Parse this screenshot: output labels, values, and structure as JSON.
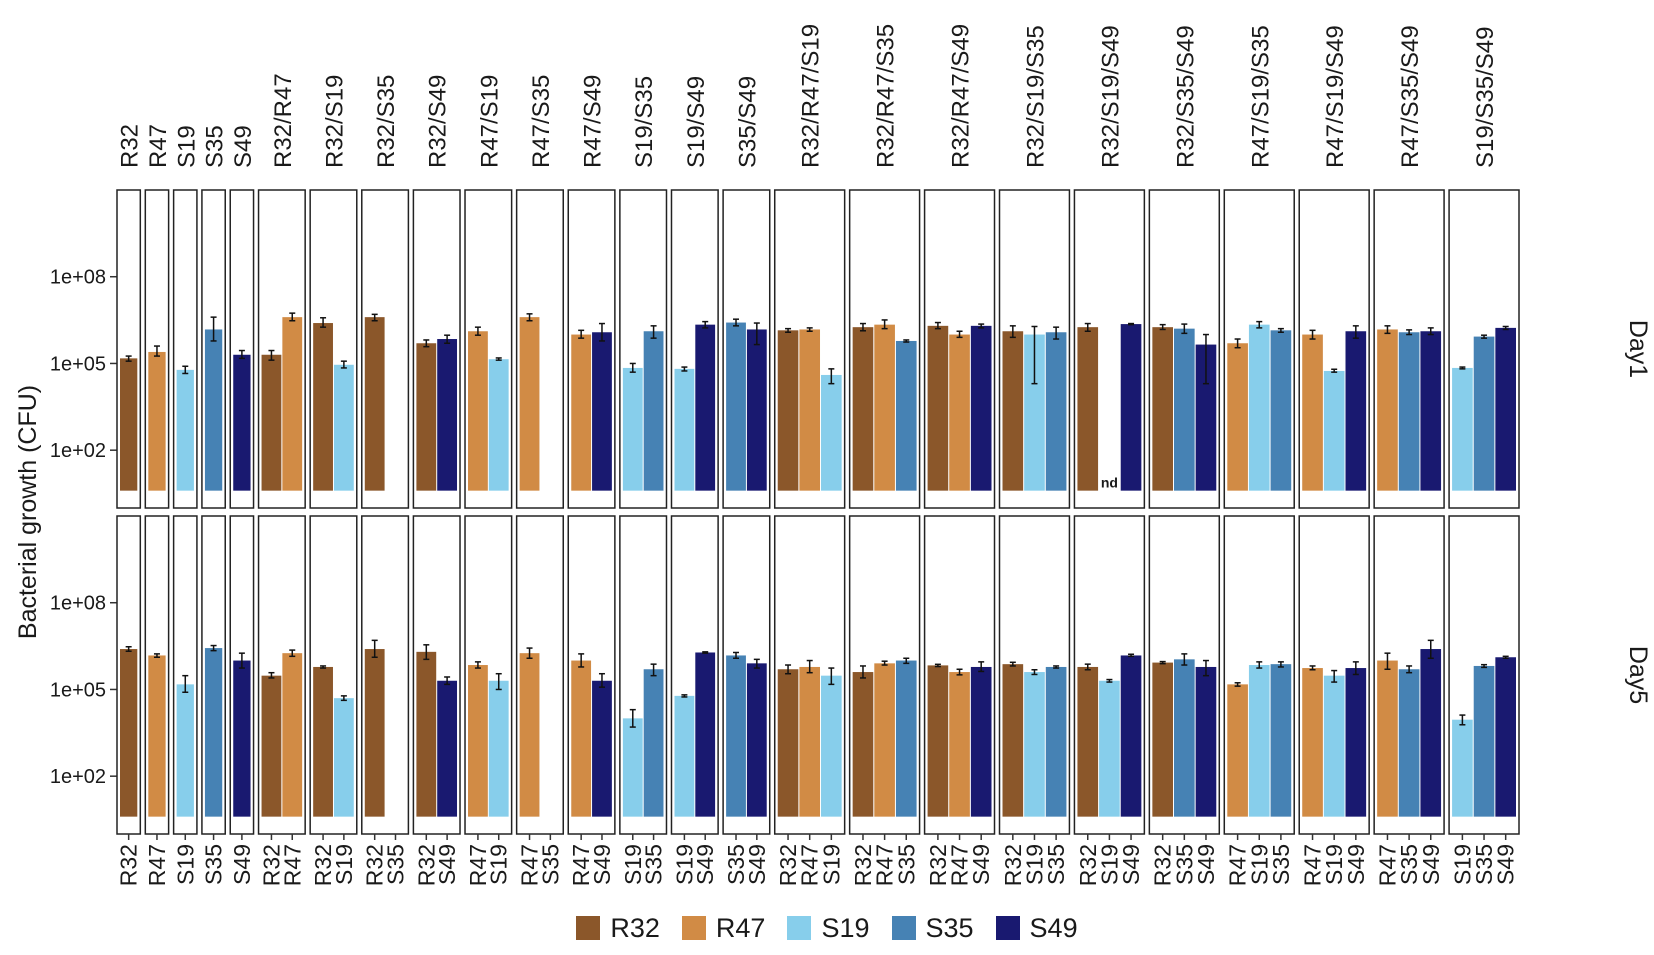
{
  "chart_data": {
    "type": "bar",
    "title": "",
    "ylabel": "Bacterial growth (CFU)",
    "xlabel": "",
    "yscale": "log10",
    "ylim": [
      1,
      100000000000
    ],
    "yticks": [
      "1e+02",
      "1e+05",
      "1e+08"
    ],
    "ytick_values": [
      100,
      100000,
      100000000
    ],
    "rows": [
      "Day1",
      "Day5"
    ],
    "not_detected_label": "nd",
    "colors": {
      "R32": "#8B572A",
      "R47": "#D18B45",
      "S19": "#87CEEB",
      "S35": "#4682B4",
      "S49": "#191970"
    },
    "legend": [
      "R32",
      "R47",
      "S19",
      "S35",
      "S49"
    ],
    "panels": [
      {
        "label": "R32",
        "strains": [
          "R32"
        ],
        "Day1": [
          {
            "v": 150000,
            "lo": 120000,
            "hi": 180000
          }
        ],
        "Day5": [
          {
            "v": 2500000,
            "lo": 2100000,
            "hi": 3000000
          }
        ]
      },
      {
        "label": "R47",
        "strains": [
          "R47"
        ],
        "Day1": [
          {
            "v": 250000,
            "lo": 180000,
            "hi": 400000
          }
        ],
        "Day5": [
          {
            "v": 1500000,
            "lo": 1300000,
            "hi": 1700000
          }
        ]
      },
      {
        "label": "S19",
        "strains": [
          "S19"
        ],
        "Day1": [
          {
            "v": 60000,
            "lo": 45000,
            "hi": 80000
          }
        ],
        "Day5": [
          {
            "v": 150000,
            "lo": 80000,
            "hi": 300000
          }
        ]
      },
      {
        "label": "S35",
        "strains": [
          "S35"
        ],
        "Day1": [
          {
            "v": 1500000,
            "lo": 600000,
            "hi": 4000000
          }
        ],
        "Day5": [
          {
            "v": 2700000,
            "lo": 2200000,
            "hi": 3300000
          }
        ]
      },
      {
        "label": "S49",
        "strains": [
          "S49"
        ],
        "Day1": [
          {
            "v": 200000,
            "lo": 150000,
            "hi": 280000
          }
        ],
        "Day5": [
          {
            "v": 1000000,
            "lo": 550000,
            "hi": 1800000
          }
        ]
      },
      {
        "label": "R32/R47",
        "strains": [
          "R32",
          "R47"
        ],
        "Day1": [
          {
            "v": 200000,
            "lo": 130000,
            "hi": 280000
          },
          {
            "v": 4000000,
            "lo": 3000000,
            "hi": 5500000
          }
        ],
        "Day5": [
          {
            "v": 300000,
            "lo": 250000,
            "hi": 380000
          },
          {
            "v": 1800000,
            "lo": 1400000,
            "hi": 2300000
          }
        ]
      },
      {
        "label": "R32/S19",
        "strains": [
          "R32",
          "S19"
        ],
        "Day1": [
          {
            "v": 2500000,
            "lo": 1800000,
            "hi": 3800000
          },
          {
            "v": 90000,
            "lo": 70000,
            "hi": 120000
          }
        ],
        "Day5": [
          {
            "v": 600000,
            "lo": 550000,
            "hi": 650000
          },
          {
            "v": 50000,
            "lo": 42000,
            "hi": 60000
          }
        ]
      },
      {
        "label": "R32/S35",
        "strains": [
          "R32",
          "S35"
        ],
        "Day1": [
          {
            "v": 4000000,
            "lo": 3000000,
            "hi": 5000000
          },
          null
        ],
        "Day5": [
          {
            "v": 2500000,
            "lo": 1300000,
            "hi": 5000000
          },
          null
        ]
      },
      {
        "label": "R32/S49",
        "strains": [
          "R32",
          "S49"
        ],
        "Day1": [
          {
            "v": 500000,
            "lo": 380000,
            "hi": 650000
          },
          {
            "v": 700000,
            "lo": 500000,
            "hi": 950000
          }
        ],
        "Day5": [
          {
            "v": 2000000,
            "lo": 1100000,
            "hi": 3500000
          },
          {
            "v": 200000,
            "lo": 150000,
            "hi": 270000
          }
        ]
      },
      {
        "label": "R47/S19",
        "strains": [
          "R47",
          "S19"
        ],
        "Day1": [
          {
            "v": 1300000,
            "lo": 950000,
            "hi": 1800000
          },
          {
            "v": 140000,
            "lo": 130000,
            "hi": 155000
          }
        ],
        "Day5": [
          {
            "v": 700000,
            "lo": 550000,
            "hi": 900000
          },
          {
            "v": 200000,
            "lo": 100000,
            "hi": 350000
          }
        ]
      },
      {
        "label": "R47/S35",
        "strains": [
          "R47",
          "S35"
        ],
        "Day1": [
          {
            "v": 4000000,
            "lo": 3000000,
            "hi": 5200000
          },
          null
        ],
        "Day5": [
          {
            "v": 1800000,
            "lo": 1200000,
            "hi": 2700000
          },
          null
        ]
      },
      {
        "label": "R47/S49",
        "strains": [
          "R47",
          "S49"
        ],
        "Day1": [
          {
            "v": 1000000,
            "lo": 750000,
            "hi": 1400000
          },
          {
            "v": 1200000,
            "lo": 600000,
            "hi": 2400000
          }
        ],
        "Day5": [
          {
            "v": 1000000,
            "lo": 600000,
            "hi": 1700000
          },
          {
            "v": 200000,
            "lo": 120000,
            "hi": 350000
          }
        ]
      },
      {
        "label": "S19/S35",
        "strains": [
          "S19",
          "S35"
        ],
        "Day1": [
          {
            "v": 70000,
            "lo": 50000,
            "hi": 100000
          },
          {
            "v": 1300000,
            "lo": 750000,
            "hi": 2000000
          }
        ],
        "Day5": [
          {
            "v": 10000,
            "lo": 5000,
            "hi": 20000
          },
          {
            "v": 500000,
            "lo": 300000,
            "hi": 750000
          }
        ]
      },
      {
        "label": "S19/S49",
        "strains": [
          "S19",
          "S49"
        ],
        "Day1": [
          {
            "v": 65000,
            "lo": 55000,
            "hi": 75000
          },
          {
            "v": 2200000,
            "lo": 1700000,
            "hi": 2800000
          }
        ],
        "Day5": [
          {
            "v": 60000,
            "lo": 55000,
            "hi": 65000
          },
          {
            "v": 1900000,
            "lo": 1800000,
            "hi": 2000000
          }
        ]
      },
      {
        "label": "S35/S49",
        "strains": [
          "S35",
          "S49"
        ],
        "Day1": [
          {
            "v": 2600000,
            "lo": 2000000,
            "hi": 3400000
          },
          {
            "v": 1500000,
            "lo": 450000,
            "hi": 2500000
          }
        ],
        "Day5": [
          {
            "v": 1500000,
            "lo": 1200000,
            "hi": 1900000
          },
          {
            "v": 800000,
            "lo": 550000,
            "hi": 1100000
          }
        ]
      },
      {
        "label": "R32/R47/S19",
        "strains": [
          "R32",
          "R47",
          "S19"
        ],
        "Day1": [
          {
            "v": 1400000,
            "lo": 1200000,
            "hi": 1600000
          },
          {
            "v": 1500000,
            "lo": 1300000,
            "hi": 1700000
          },
          {
            "v": 40000,
            "lo": 20000,
            "hi": 65000
          }
        ],
        "Day5": [
          {
            "v": 500000,
            "lo": 350000,
            "hi": 700000
          },
          {
            "v": 600000,
            "lo": 380000,
            "hi": 1000000
          },
          {
            "v": 300000,
            "lo": 150000,
            "hi": 550000
          }
        ]
      },
      {
        "label": "R32/R47/S35",
        "strains": [
          "R32",
          "R47",
          "S35"
        ],
        "Day1": [
          {
            "v": 1800000,
            "lo": 1350000,
            "hi": 2400000
          },
          {
            "v": 2200000,
            "lo": 1600000,
            "hi": 3200000
          },
          {
            "v": 600000,
            "lo": 550000,
            "hi": 650000
          }
        ],
        "Day5": [
          {
            "v": 400000,
            "lo": 250000,
            "hi": 650000
          },
          {
            "v": 800000,
            "lo": 700000,
            "hi": 950000
          },
          {
            "v": 1000000,
            "lo": 800000,
            "hi": 1200000
          }
        ]
      },
      {
        "label": "R32/R47/S49",
        "strains": [
          "R32",
          "R47",
          "S49"
        ],
        "Day1": [
          {
            "v": 2000000,
            "lo": 1600000,
            "hi": 2600000
          },
          {
            "v": 1000000,
            "lo": 800000,
            "hi": 1300000
          },
          {
            "v": 2000000,
            "lo": 1700000,
            "hi": 2300000
          }
        ],
        "Day5": [
          {
            "v": 680000,
            "lo": 620000,
            "hi": 740000
          },
          {
            "v": 400000,
            "lo": 320000,
            "hi": 500000
          },
          {
            "v": 600000,
            "lo": 420000,
            "hi": 900000
          }
        ]
      },
      {
        "label": "R32/S19/S35",
        "strains": [
          "R32",
          "S19",
          "S35"
        ],
        "Day1": [
          {
            "v": 1300000,
            "lo": 800000,
            "hi": 2000000
          },
          {
            "v": 1000000,
            "lo": 20000,
            "hi": 1900000
          },
          {
            "v": 1200000,
            "lo": 700000,
            "hi": 1800000
          }
        ],
        "Day5": [
          {
            "v": 750000,
            "lo": 650000,
            "hi": 870000
          },
          {
            "v": 400000,
            "lo": 330000,
            "hi": 480000
          },
          {
            "v": 600000,
            "lo": 550000,
            "hi": 650000
          }
        ]
      },
      {
        "label": "R32/S19/S49",
        "strains": [
          "R32",
          "S19",
          "S49"
        ],
        "Day1": [
          {
            "v": 1800000,
            "lo": 1300000,
            "hi": 2400000
          },
          null,
          {
            "v": 2300000,
            "lo": 2200000,
            "hi": 2400000
          }
        ],
        "Day5": [
          {
            "v": 600000,
            "lo": 480000,
            "hi": 750000
          },
          {
            "v": 200000,
            "lo": 180000,
            "hi": 220000
          },
          {
            "v": 1500000,
            "lo": 1400000,
            "hi": 1650000
          }
        ]
      },
      {
        "label": "R32/S35/S49",
        "strains": [
          "R32",
          "S35",
          "S49"
        ],
        "Day1": [
          {
            "v": 1800000,
            "lo": 1500000,
            "hi": 2200000
          },
          {
            "v": 1600000,
            "lo": 1100000,
            "hi": 2300000
          },
          {
            "v": 450000,
            "lo": 20000,
            "hi": 1000000
          }
        ],
        "Day5": [
          {
            "v": 850000,
            "lo": 780000,
            "hi": 920000
          },
          {
            "v": 1100000,
            "lo": 700000,
            "hi": 1700000
          },
          {
            "v": 600000,
            "lo": 300000,
            "hi": 1000000
          }
        ]
      },
      {
        "label": "R47/S19/S35",
        "strains": [
          "R47",
          "S19",
          "S35"
        ],
        "Day1": [
          {
            "v": 500000,
            "lo": 350000,
            "hi": 700000
          },
          {
            "v": 2200000,
            "lo": 1700000,
            "hi": 2800000
          },
          {
            "v": 1400000,
            "lo": 1200000,
            "hi": 1600000
          }
        ],
        "Day5": [
          {
            "v": 150000,
            "lo": 130000,
            "hi": 170000
          },
          {
            "v": 700000,
            "lo": 550000,
            "hi": 900000
          },
          {
            "v": 750000,
            "lo": 600000,
            "hi": 900000
          }
        ]
      },
      {
        "label": "R47/S19/S49",
        "strains": [
          "R47",
          "S19",
          "S49"
        ],
        "Day1": [
          {
            "v": 1000000,
            "lo": 700000,
            "hi": 1400000
          },
          {
            "v": 55000,
            "lo": 50000,
            "hi": 63000
          },
          {
            "v": 1300000,
            "lo": 750000,
            "hi": 2000000
          }
        ],
        "Day5": [
          {
            "v": 550000,
            "lo": 480000,
            "hi": 650000
          },
          {
            "v": 300000,
            "lo": 180000,
            "hi": 450000
          },
          {
            "v": 550000,
            "lo": 330000,
            "hi": 900000
          }
        ]
      },
      {
        "label": "R47/S35/S49",
        "strains": [
          "R47",
          "S35",
          "S49"
        ],
        "Day1": [
          {
            "v": 1500000,
            "lo": 1100000,
            "hi": 2000000
          },
          {
            "v": 1200000,
            "lo": 1000000,
            "hi": 1450000
          },
          {
            "v": 1300000,
            "lo": 1000000,
            "hi": 1700000
          }
        ],
        "Day5": [
          {
            "v": 1000000,
            "lo": 500000,
            "hi": 1800000
          },
          {
            "v": 500000,
            "lo": 380000,
            "hi": 650000
          },
          {
            "v": 2500000,
            "lo": 1200000,
            "hi": 5000000
          }
        ]
      },
      {
        "label": "S19/S35/S49",
        "strains": [
          "S19",
          "S35",
          "S49"
        ],
        "Day1": [
          {
            "v": 70000,
            "lo": 65000,
            "hi": 75000
          },
          {
            "v": 850000,
            "lo": 750000,
            "hi": 950000
          },
          {
            "v": 1700000,
            "lo": 1500000,
            "hi": 1900000
          }
        ],
        "Day5": [
          {
            "v": 9000,
            "lo": 6000,
            "hi": 13000
          },
          {
            "v": 650000,
            "lo": 580000,
            "hi": 720000
          },
          {
            "v": 1300000,
            "lo": 1200000,
            "hi": 1400000
          }
        ]
      }
    ]
  }
}
